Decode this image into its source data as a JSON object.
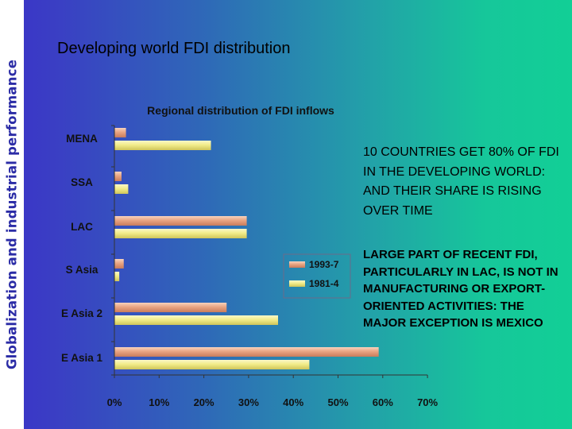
{
  "side_title": "Globalization and industrial performance",
  "heading": "Developing world FDI distribution",
  "notes": {
    "first": "10 COUNTRIES GET 80% OF FDI IN THE DEVELOPING WORLD: AND THEIR SHARE IS RISING OVER TIME",
    "second": "LARGE PART OF RECENT FDI, PARTICULARLY IN LAC, IS NOT IN MANUFACTURING OR EXPORT-ORIENTED ACTIVITIES: THE MAJOR EXCEPTION IS MEXICO"
  },
  "colors": {
    "series_1993": "#e9a482",
    "series_1981": "#f2ec8a",
    "axis": "#333333",
    "chart_text": "#111111"
  },
  "chart_data": {
    "type": "bar",
    "orientation": "horizontal",
    "title": "Regional distribution of FDI inflows",
    "categories": [
      "MENA",
      "SSA",
      "LAC",
      "S Asia",
      "E Asia 2",
      "E Asia 1"
    ],
    "series": [
      {
        "name": "1993-7",
        "values": [
          2.5,
          1.5,
          29.5,
          2.0,
          25.0,
          59.0
        ]
      },
      {
        "name": "1981-4",
        "values": [
          21.5,
          3.0,
          29.5,
          1.0,
          36.5,
          43.5
        ]
      }
    ],
    "x_ticks": [
      "0%",
      "10%",
      "20%",
      "30%",
      "40%",
      "50%",
      "60%",
      "70%"
    ],
    "xlim": [
      0,
      70
    ],
    "legend_position": "right-middle",
    "grid": false
  }
}
